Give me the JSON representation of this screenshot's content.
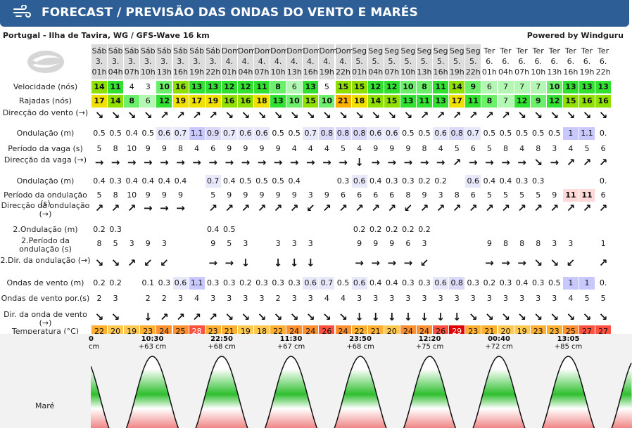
{
  "header": {
    "title": "FORECAST / PREVISÃO DAS ONDAS DO VENTO E MARÉS",
    "icon": "wind-icon"
  },
  "location": "Portugal - Ilha de Tavira, WG / GFS-Wave 16 km",
  "powered": "Powered by Windguru",
  "columns": [
    {
      "d": "Sáb",
      "n": "3.",
      "h": "01h"
    },
    {
      "d": "Sáb",
      "n": "3.",
      "h": "04h"
    },
    {
      "d": "Sáb",
      "n": "3.",
      "h": "07h"
    },
    {
      "d": "Sáb",
      "n": "3.",
      "h": "10h"
    },
    {
      "d": "Sáb",
      "n": "3.",
      "h": "13h"
    },
    {
      "d": "Sáb",
      "n": "3.",
      "h": "16h"
    },
    {
      "d": "Sáb",
      "n": "3.",
      "h": "19h"
    },
    {
      "d": "Sáb",
      "n": "3.",
      "h": "22h"
    },
    {
      "d": "Dom",
      "n": "4.",
      "h": "01h"
    },
    {
      "d": "Dom",
      "n": "4.",
      "h": "04h"
    },
    {
      "d": "Dom",
      "n": "4.",
      "h": "07h"
    },
    {
      "d": "Dom",
      "n": "4.",
      "h": "10h"
    },
    {
      "d": "Dom",
      "n": "4.",
      "h": "13h"
    },
    {
      "d": "Dom",
      "n": "4.",
      "h": "16h"
    },
    {
      "d": "Dom",
      "n": "4.",
      "h": "19h"
    },
    {
      "d": "Dom",
      "n": "4.",
      "h": "22h"
    },
    {
      "d": "Seg",
      "n": "5.",
      "h": "01h"
    },
    {
      "d": "Seg",
      "n": "5.",
      "h": "04h"
    },
    {
      "d": "Seg",
      "n": "5.",
      "h": "07h"
    },
    {
      "d": "Seg",
      "n": "5.",
      "h": "10h"
    },
    {
      "d": "Seg",
      "n": "5.",
      "h": "13h"
    },
    {
      "d": "Seg",
      "n": "5.",
      "h": "16h"
    },
    {
      "d": "Seg",
      "n": "5.",
      "h": "19h"
    },
    {
      "d": "Seg",
      "n": "5.",
      "h": "22h"
    },
    {
      "d": "Ter",
      "n": "6.",
      "h": "01h"
    },
    {
      "d": "Ter",
      "n": "6.",
      "h": "04h"
    },
    {
      "d": "Ter",
      "n": "6.",
      "h": "07h"
    },
    {
      "d": "Ter",
      "n": "6.",
      "h": "10h"
    },
    {
      "d": "Ter",
      "n": "6.",
      "h": "13h"
    },
    {
      "d": "Ter",
      "n": "6.",
      "h": "16h"
    },
    {
      "d": "Ter",
      "n": "6.",
      "h": "19h"
    },
    {
      "d": "Ter",
      "n": "6.",
      "h": "22h"
    }
  ],
  "rows": [
    {
      "label": "Velocidade (nós)",
      "type": "wind",
      "values": [
        14,
        11,
        4,
        3,
        10,
        16,
        13,
        13,
        12,
        12,
        11,
        8,
        6,
        13,
        5,
        15,
        15,
        12,
        12,
        10,
        8,
        11,
        14,
        9,
        6,
        7,
        7,
        7,
        10,
        13,
        13,
        13
      ]
    },
    {
      "label": "Rajadas (nós)",
      "type": "gust",
      "values": [
        17,
        14,
        8,
        6,
        12,
        19,
        17,
        19,
        16,
        16,
        18,
        13,
        10,
        15,
        10,
        21,
        18,
        14,
        15,
        13,
        11,
        13,
        17,
        11,
        8,
        7,
        12,
        9,
        12,
        15,
        16,
        16
      ]
    },
    {
      "label": "Direcção do vento (→)",
      "type": "arrow",
      "values": [
        "↘",
        "↘",
        "↘",
        "↘",
        "↗",
        "↗",
        "↗",
        "↗",
        "↘",
        "↘",
        "↘",
        "↘",
        "↘",
        "↘",
        "↘",
        "↘",
        "↘",
        "↘",
        "↘",
        "↘",
        "↗",
        "↗",
        "↗",
        "↗",
        "↗",
        "↗",
        "↘",
        "↘",
        "↘",
        "↘",
        "↘",
        "↘"
      ]
    },
    {
      "label": "Ondulação (m)",
      "type": "wave",
      "values": [
        "0.5",
        "0.5",
        "0.4",
        "0.5",
        "0.6",
        "0.7",
        "1.1",
        "0.9",
        "0.7",
        "0.6",
        "0.6",
        "0.5",
        "0.5",
        "0.7",
        "0.8",
        "0.8",
        "0.8",
        "0.6",
        "0.6",
        "0.5",
        "0.5",
        "0.6",
        "0.8",
        "0.7",
        "0.5",
        "0.5",
        "0.5",
        "0.5",
        "0.5",
        "1",
        "1.1",
        "0."
      ]
    },
    {
      "label": "Período da vaga (s)",
      "type": "plain",
      "values": [
        "5",
        "8",
        "10",
        "9",
        "9",
        "8",
        "4",
        "6",
        "9",
        "9",
        "9",
        "9",
        "4",
        "4",
        "4",
        "5",
        "4",
        "9",
        "9",
        "9",
        "8",
        "4",
        "5",
        "6",
        "5",
        "8",
        "4",
        "8",
        "3",
        "4",
        "5",
        "6"
      ]
    },
    {
      "label": "Direcção da vaga (→)",
      "type": "arrow",
      "values": [
        "→",
        "→",
        "→",
        "→",
        "→",
        "→",
        "→",
        "→",
        "→",
        "→",
        "→",
        "→",
        "→",
        "→",
        "→",
        "→",
        "↓",
        "→",
        "→",
        "→",
        "→",
        "→",
        "↗",
        "→",
        "→",
        "→",
        "→",
        "↘",
        "→",
        "↗",
        "↗",
        "↗"
      ]
    },
    {
      "label": "Ondulação (m)",
      "type": "wave",
      "values": [
        "0.4",
        "0.3",
        "0.4",
        "0.4",
        "0.4",
        "0.4",
        "",
        "0.7",
        "0.4",
        "0.5",
        "0.5",
        "0.5",
        "0.4",
        "",
        "",
        "0.3",
        "0.6",
        "0.4",
        "0.3",
        "0.3",
        "0.2",
        "0.2",
        "",
        "0.6",
        "0.4",
        "0.4",
        "0.3",
        "0.3",
        "",
        "",
        "",
        "0."
      ]
    },
    {
      "label": "Período da ondulação (s)",
      "type": "period",
      "values": [
        "5",
        "8",
        "10",
        "9",
        "9",
        "9",
        "",
        "5",
        "9",
        "9",
        "9",
        "9",
        "9",
        "3",
        "9",
        "6",
        "6",
        "6",
        "6",
        "8",
        "9",
        "3",
        "8",
        "6",
        "5",
        "5",
        "5",
        "5",
        "9",
        "11",
        "11",
        "6"
      ]
    },
    {
      "label": "Direcção da ondulação (→)",
      "type": "arrow",
      "values": [
        "↗",
        "↗",
        "↗",
        "→",
        "→",
        "→",
        "",
        "↗",
        "↗",
        "↗",
        "↗",
        "↗",
        "↗",
        "↙",
        "↗",
        "↗",
        "↗",
        "↗",
        "↗",
        "↙",
        "↗",
        "↗",
        "↗",
        "↗",
        "↗",
        "↗",
        "↗",
        "↗",
        "↗",
        "↗",
        "↗",
        "↗"
      ]
    },
    {
      "label": "2.Ondulação (m)",
      "type": "wave",
      "values": [
        "0.2",
        "0.3",
        "",
        "",
        "",
        "",
        "",
        "0.4",
        "0.5",
        "",
        "",
        "",
        "",
        "",
        "",
        "",
        "0.2",
        "0.2",
        "0.2",
        "0.2",
        "0.2",
        "",
        "",
        "",
        "",
        "",
        "",
        "",
        "",
        "",
        "",
        ""
      ]
    },
    {
      "label": "2.Período da ondulação (s)",
      "type": "plain",
      "values": [
        "8",
        "5",
        "3",
        "9",
        "3",
        "",
        "",
        "9",
        "5",
        "3",
        "",
        "3",
        "3",
        "3",
        "",
        "",
        "9",
        "9",
        "9",
        "6",
        "3",
        "",
        "",
        "",
        "9",
        "8",
        "8",
        "8",
        "3",
        "3",
        "",
        "1"
      ]
    },
    {
      "label": "2.Dir. da ondulação (→)",
      "type": "arrow",
      "values": [
        "↘",
        "↘",
        "↗",
        "↙",
        "↙",
        "",
        "",
        "→",
        "→",
        "↓",
        "",
        "↓",
        "↓",
        "↓",
        "",
        "",
        "→",
        "→",
        "→",
        "→",
        "↙",
        "",
        "",
        "",
        "→",
        "→",
        "→",
        "↘",
        "↘",
        "↙",
        "",
        "↗"
      ]
    },
    {
      "label": "Ondas de vento (m)",
      "type": "wave",
      "values": [
        "0.2",
        "0.2",
        "",
        "0.1",
        "0.3",
        "0.6",
        "1.1",
        "0.3",
        "0.3",
        "0.2",
        "0.3",
        "0.3",
        "0.3",
        "0.6",
        "0.7",
        "0.5",
        "0.6",
        "0.4",
        "0.4",
        "0.3",
        "0.3",
        "0.6",
        "0.8",
        "0.3",
        "0.2",
        "0.3",
        "0.4",
        "0.3",
        "0.5",
        "1",
        "1",
        "0."
      ]
    },
    {
      "label": "Ondas de vento por.(s)",
      "type": "plain",
      "values": [
        "2",
        "3",
        "",
        "2",
        "2",
        "3",
        "4",
        "3",
        "3",
        "3",
        "3",
        "2",
        "3",
        "3",
        "4",
        "4",
        "3",
        "3",
        "3",
        "3",
        "3",
        "3",
        "3",
        "3",
        "3",
        "3",
        "3",
        "3",
        "3",
        "4",
        "5",
        "5"
      ]
    },
    {
      "label": "Dir. da onda de vento (→)",
      "type": "arrow",
      "values": [
        "↘",
        "↘",
        "",
        "↓",
        "↗",
        "↗",
        "↗",
        "↗",
        "↘",
        "↘",
        "↘",
        "↘",
        "↘",
        "↘",
        "↘",
        "↘",
        "↓",
        "↓",
        "↓",
        "↓",
        "↓",
        "↓",
        "↓",
        "↘",
        "↘",
        "↘",
        "↘",
        "↘",
        "↘",
        "↘",
        "↘",
        "↘"
      ]
    },
    {
      "label": "Temperatura (°C)",
      "type": "temp",
      "values": [
        22,
        20,
        19,
        23,
        24,
        25,
        28,
        23,
        21,
        19,
        18,
        22,
        24,
        24,
        26,
        24,
        22,
        21,
        20,
        24,
        24,
        26,
        29,
        23,
        21,
        20,
        19,
        23,
        23,
        25,
        27,
        27
      ]
    },
    {
      "label": "*Precip. (mm/1h)",
      "type": "plain",
      "values": [
        "",
        "",
        "",
        "",
        "",
        "",
        "",
        "",
        "",
        "",
        "",
        "",
        "",
        "",
        "",
        "",
        "",
        "",
        "",
        "",
        "",
        "",
        "",
        "",
        "",
        "",
        "",
        "",
        "",
        "",
        "",
        ""
      ]
    }
  ],
  "tide": {
    "label": "Maré",
    "highs": [
      {
        "time": "0",
        "height": "cm"
      },
      {
        "time": "10:30",
        "height": "+63 cm"
      },
      {
        "time": "22:50",
        "height": "+68 cm"
      },
      {
        "time": "11:30",
        "height": "+67 cm"
      },
      {
        "time": "23:50",
        "height": "+68 cm"
      },
      {
        "time": "12:20",
        "height": "+75 cm"
      },
      {
        "time": "00:40",
        "height": "+72 cm"
      },
      {
        "time": "13:05",
        "height": "+85 cm"
      }
    ]
  },
  "colors": {
    "header": "#2e5e96",
    "high_green": "#2fbf2f",
    "low_red": "#e03a3a"
  }
}
